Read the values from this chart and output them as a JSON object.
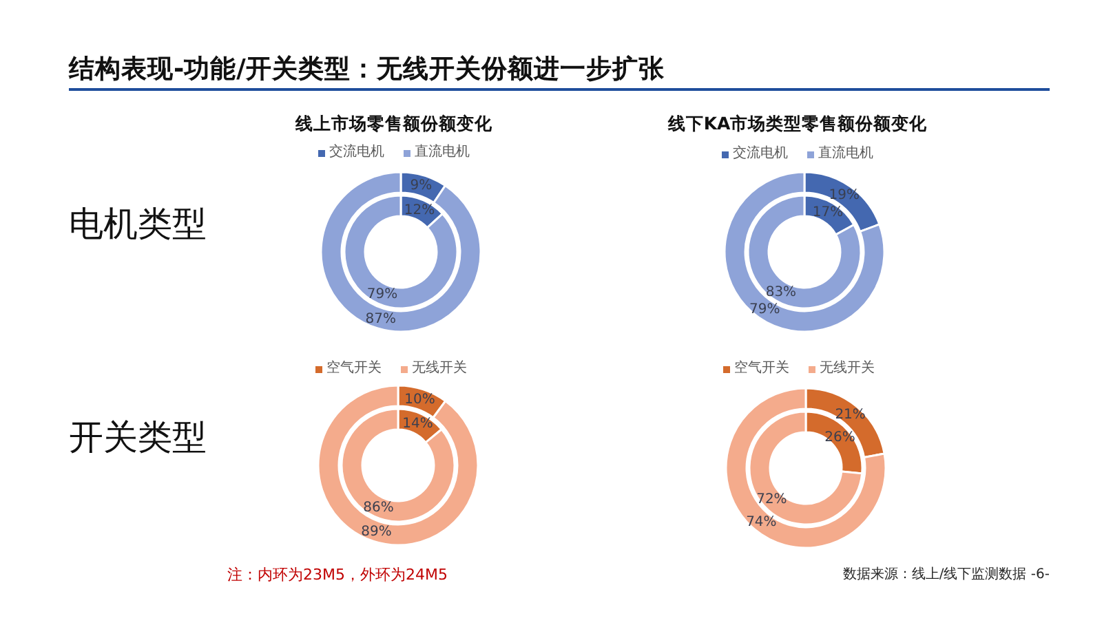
{
  "chart_data": [
    {
      "type": "other",
      "title": "结构表现-功能/开关类型：无线开关份额进一步扩张",
      "annotations": [
        "电机类型",
        "开关类型",
        "注：内环为23M5，外环为24M5",
        "数据来源：线上/线下监测数据 -6-"
      ]
    },
    {
      "type": "donut",
      "title": "线上市场零售额份额变化",
      "categories": [
        "交流电机",
        "直流电机"
      ],
      "colors": [
        "#4468b0",
        "#8ea3d8"
      ],
      "legend": "top",
      "series": [
        {
          "values": [
            12,
            79
          ],
          "value_labels": [
            "12%",
            "79%"
          ]
        },
        {
          "values": [
            9,
            87
          ],
          "value_labels": [
            "9%",
            "87%"
          ]
        }
      ]
    },
    {
      "type": "donut",
      "title": "线下KA市场类型零售额份额变化",
      "categories": [
        "交流电机",
        "直流电机"
      ],
      "colors": [
        "#4468b0",
        "#8ea3d8"
      ],
      "legend": "top",
      "series": [
        {
          "values": [
            17,
            83
          ],
          "value_labels": [
            "17%",
            "83%"
          ]
        },
        {
          "values": [
            19,
            79
          ],
          "value_labels": [
            "19%",
            "79%"
          ]
        }
      ]
    },
    {
      "type": "donut",
      "categories": [
        "空气开关",
        "无线开关"
      ],
      "colors": [
        "#d46b2c",
        "#f4ab8c"
      ],
      "legend": "top",
      "series": [
        {
          "values": [
            14,
            86
          ],
          "value_labels": [
            "14%",
            "86%"
          ]
        },
        {
          "values": [
            10,
            89
          ],
          "value_labels": [
            "10%",
            "89%"
          ]
        }
      ]
    },
    {
      "type": "donut",
      "categories": [
        "空气开关",
        "无线开关"
      ],
      "colors": [
        "#d46b2c",
        "#f4ab8c"
      ],
      "legend": "top",
      "series": [
        {
          "values": [
            26,
            72
          ],
          "value_labels": [
            "26%",
            "72%"
          ]
        },
        {
          "values": [
            21,
            74
          ],
          "value_labels": [
            "21%",
            "74%"
          ]
        }
      ]
    }
  ]
}
